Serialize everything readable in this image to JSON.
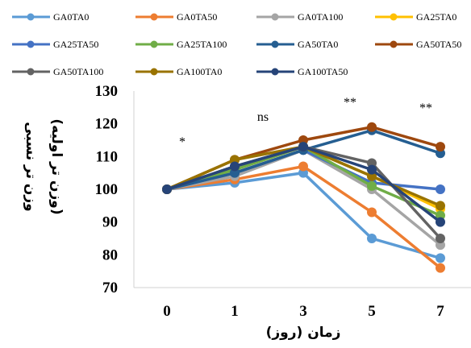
{
  "chart_data": {
    "type": "line",
    "x": [
      "0",
      "1",
      "3",
      "5",
      "7"
    ],
    "xlabel": "زمان (روز)",
    "ylabel_line1": "وزن تر نسبی",
    "ylabel_line2": "(وزن تر اولیه)",
    "ylim": [
      70,
      130
    ],
    "yticks": [
      "70",
      "80",
      "90",
      "100",
      "110",
      "120",
      "130"
    ],
    "legend_position": "top",
    "grid": false,
    "significance": [
      "*",
      "ns",
      "**",
      "**"
    ],
    "series": [
      {
        "name": "GA0TA0",
        "color": "#5b9bd5",
        "values": [
          100,
          102,
          105,
          85,
          79
        ]
      },
      {
        "name": "GA0TA50",
        "color": "#ed7d31",
        "values": [
          100,
          103,
          107,
          93,
          76
        ]
      },
      {
        "name": "GA0TA100",
        "color": "#a5a5a5",
        "values": [
          100,
          104,
          112,
          100,
          83
        ]
      },
      {
        "name": "GA25TA0",
        "color": "#ffc000",
        "values": [
          100,
          106,
          113,
          104,
          94
        ]
      },
      {
        "name": "GA25TA50",
        "color": "#4472c4",
        "values": [
          100,
          105,
          112,
          102,
          100
        ]
      },
      {
        "name": "GA25TA100",
        "color": "#70ad47",
        "values": [
          100,
          106,
          113,
          101,
          92
        ]
      },
      {
        "name": "GA50TA0",
        "color": "#255e91",
        "values": [
          100,
          105,
          112,
          118,
          111
        ]
      },
      {
        "name": "GA50TA50",
        "color": "#9e480e",
        "values": [
          100,
          109,
          115,
          119,
          113
        ]
      },
      {
        "name": "GA50TA100",
        "color": "#636363",
        "values": [
          100,
          107,
          113,
          108,
          85
        ]
      },
      {
        "name": "GA100TA0",
        "color": "#997300",
        "values": [
          100,
          109,
          113,
          104,
          95
        ]
      },
      {
        "name": "GA100TA50",
        "color": "#264478",
        "values": [
          100,
          107,
          113,
          106,
          90
        ]
      }
    ]
  }
}
